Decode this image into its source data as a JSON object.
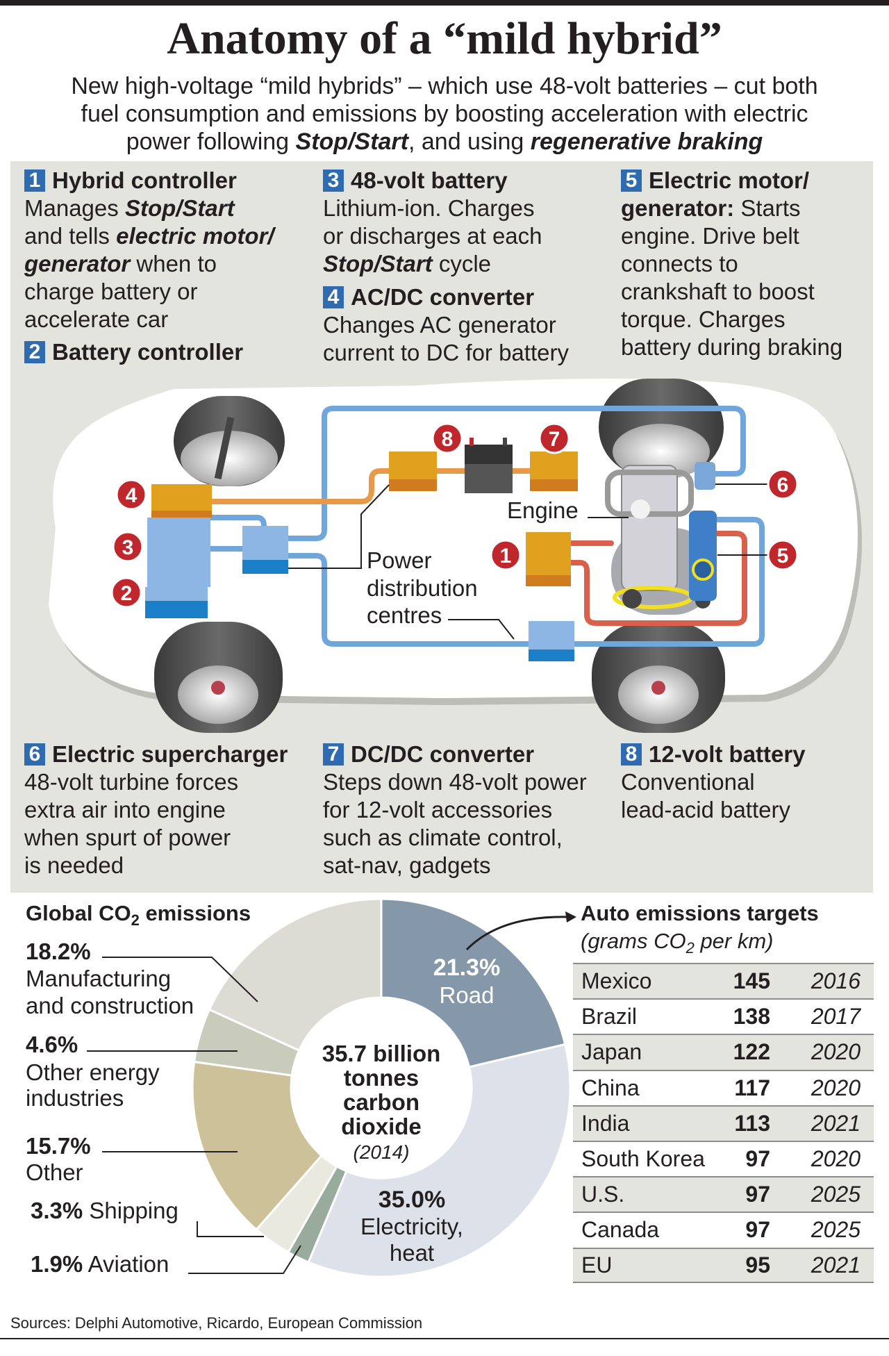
{
  "title": "Anatomy of a “mild hybrid”",
  "subtitle": [
    [
      {
        "t": "New high-voltage “mild hybrids” – which use 48-volt batteries – cut both"
      }
    ],
    [
      {
        "t": "fuel consumption and emissions by boosting acceleration with electric"
      }
    ],
    [
      {
        "t": "power following "
      },
      {
        "t": "Stop/Start",
        "s": "em"
      },
      {
        "t": ", and using "
      },
      {
        "t": "regenerative braking",
        "s": "em"
      }
    ]
  ],
  "blocks": [
    {
      "num": "1",
      "title": "Hybrid controller",
      "lines": [
        [
          {
            "t": "Manages "
          },
          {
            "t": "Stop/Start",
            "s": "em"
          }
        ],
        [
          {
            "t": "and tells "
          },
          {
            "t": "electric motor/",
            "s": "em"
          }
        ],
        [
          {
            "t": "generator",
            "s": "em"
          },
          {
            "t": " when to"
          }
        ],
        [
          {
            "t": "charge battery or"
          }
        ],
        [
          {
            "t": "accelerate car"
          }
        ]
      ]
    },
    {
      "num": "2",
      "title": "Battery controller",
      "lines": []
    },
    {
      "num": "3",
      "title": "48-volt battery",
      "lines": [
        [
          {
            "t": "Lithium-ion. Charges"
          }
        ],
        [
          {
            "t": "or discharges at each"
          }
        ],
        [
          {
            "t": "Stop/Start",
            "s": "em"
          },
          {
            "t": " cycle"
          }
        ]
      ]
    },
    {
      "num": "4",
      "title": "AC/DC converter",
      "lines": [
        [
          {
            "t": "Changes AC generator"
          }
        ],
        [
          {
            "t": "current to DC for battery"
          }
        ]
      ]
    },
    {
      "num": "5",
      "title": "Electric motor/",
      "lines": [
        [
          {
            "t": "generator:",
            "s": "b"
          },
          {
            "t": " Starts"
          }
        ],
        [
          {
            "t": "engine. Drive belt"
          }
        ],
        [
          {
            "t": "connects to"
          }
        ],
        [
          {
            "t": "crankshaft to boost"
          }
        ],
        [
          {
            "t": "torque. Charges"
          }
        ],
        [
          {
            "t": "battery during braking"
          }
        ]
      ]
    },
    {
      "num": "6",
      "title": "Electric supercharger",
      "lines": [
        [
          {
            "t": "48-volt turbine forces"
          }
        ],
        [
          {
            "t": "extra air into engine"
          }
        ],
        [
          {
            "t": "when spurt of power"
          }
        ],
        [
          {
            "t": "is needed"
          }
        ]
      ]
    },
    {
      "num": "7",
      "title": "DC/DC converter",
      "lines": [
        [
          {
            "t": "Steps down 48-volt power"
          }
        ],
        [
          {
            "t": "for 12-volt accessories"
          }
        ],
        [
          {
            "t": "such as climate control,"
          }
        ],
        [
          {
            "t": "sat-nav, gadgets"
          }
        ]
      ]
    },
    {
      "num": "8",
      "title": "12-volt battery",
      "lines": [
        [
          {
            "t": "Conventional"
          }
        ],
        [
          {
            "t": "lead-acid battery"
          }
        ]
      ]
    }
  ],
  "diagram": {
    "engine_label": "Engine",
    "pdc_label": [
      "Power",
      "distribution",
      "centres"
    ],
    "markers": [
      "1",
      "2",
      "3",
      "4",
      "5",
      "6",
      "7",
      "8"
    ],
    "colors": {
      "wire_48v": "#6fa6dc",
      "wire_ac": "#e89a4a",
      "wire_motor": "#d9604a",
      "marker": "#c0272d",
      "badge": "#2e6bb0",
      "component_orange": "#e0a21e",
      "component_blue": "#8db6e4"
    }
  },
  "chart_data": {
    "type": "pie",
    "title": "Global CO₂ emissions",
    "center_text": [
      "35.7 billion",
      "tonnes",
      "carbon",
      "dioxide"
    ],
    "center_note": "(2014)",
    "series": [
      {
        "label": "Road",
        "value": 21.3,
        "color": "#8598a9"
      },
      {
        "label": "Electricity, heat",
        "value": 35.0,
        "color": "#dde2ea"
      },
      {
        "label": "Aviation",
        "value": 1.9,
        "color": "#99ab9c"
      },
      {
        "label": "Shipping",
        "value": 3.3,
        "color": "#e9e9df"
      },
      {
        "label": "Other",
        "value": 15.7,
        "color": "#cdc19a"
      },
      {
        "label": "Other energy industries",
        "value": 4.6,
        "color": "#c9cbbb"
      },
      {
        "label": "Manufacturing and construction",
        "value": 18.2,
        "color": "#dcdcd4"
      }
    ],
    "labels": {
      "road_pct": "21.3%",
      "road": "Road",
      "elec_pct": "35.0%",
      "elec": [
        "Electricity,",
        "heat"
      ],
      "manu_pct": "18.2%",
      "manu": [
        "Manufacturing",
        "and construction"
      ],
      "energy_pct": "4.6%",
      "energy": [
        "Other energy",
        "industries"
      ],
      "other_pct": "15.7%",
      "other": "Other",
      "ship_pct": "3.3%",
      "ship": "Shipping",
      "avia_pct": "1.9%",
      "avia": "Aviation"
    }
  },
  "targets": {
    "title": "Auto emissions targets",
    "subtitle_pre": "(grams CO",
    "subtitle_sub": "2",
    "subtitle_post": " per km)",
    "rows": [
      {
        "country": "Mexico",
        "grams": "145",
        "year": "2016"
      },
      {
        "country": "Brazil",
        "grams": "138",
        "year": "2017"
      },
      {
        "country": "Japan",
        "grams": "122",
        "year": "2020"
      },
      {
        "country": "China",
        "grams": "117",
        "year": "2020"
      },
      {
        "country": "India",
        "grams": "113",
        "year": "2021"
      },
      {
        "country": "South Korea",
        "grams": "97",
        "year": "2020"
      },
      {
        "country": "U.S.",
        "grams": "97",
        "year": "2025"
      },
      {
        "country": "Canada",
        "grams": "97",
        "year": "2025"
      },
      {
        "country": "EU",
        "grams": "95",
        "year": "2021"
      }
    ]
  },
  "co2_heading": {
    "pre": "Global CO",
    "sub": "2",
    "post": " emissions"
  },
  "sources": "Sources: Delphi Automotive, Ricardo, European Commission"
}
